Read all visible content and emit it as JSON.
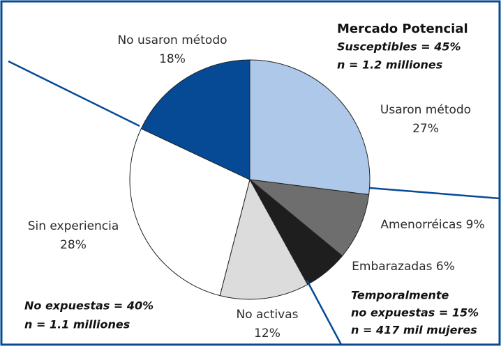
{
  "chart_data": {
    "type": "pie",
    "categories": [
      "Usaron método",
      "Amenorréicas",
      "Embarazadas",
      "No activas",
      "Sin experiencia",
      "No usaron método"
    ],
    "values": [
      27,
      9,
      6,
      12,
      28,
      18
    ],
    "value_labels": [
      "27%",
      "9%",
      "6%",
      "12%",
      "28%",
      "18%"
    ],
    "colors": [
      "#adc8e8",
      "#6e6e6e",
      "#1e1e1e",
      "#dcdcdc",
      "#ffffff",
      "#064a96"
    ],
    "annotations": [
      [
        "Mercado Potencial",
        "Susceptibles = 45%",
        "n = 1.2 milliones"
      ],
      [
        "No expuestas = 40%",
        "n = 1.1 milliones"
      ],
      [
        "Temporalmente",
        "no expuestas = 15%",
        "n = 417 mil mujeres"
      ]
    ]
  }
}
